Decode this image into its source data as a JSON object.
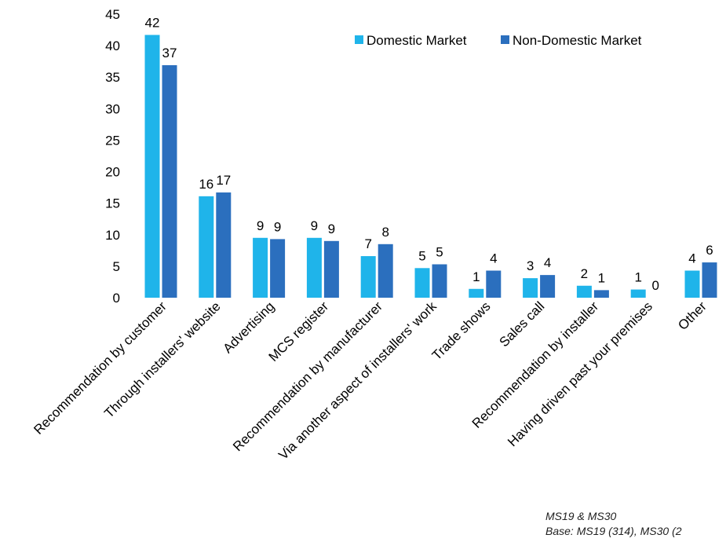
{
  "chart_data": {
    "type": "bar",
    "categories": [
      "Recommendation by customer",
      "Through installers' website",
      "Advertising",
      "MCS register",
      "Recommendation by manufacturer",
      "Via another aspect of installers' work",
      "Trade shows",
      "Sales call",
      "Recommendation by installer",
      "Having driven past your premises",
      "Other"
    ],
    "series": [
      {
        "name": "Domestic Market",
        "color": "#1fb4ea",
        "values": [
          41.7,
          16.1,
          9.5,
          9.5,
          6.6,
          4.7,
          1.4,
          3.1,
          1.9,
          1.3,
          4.3
        ],
        "labels": [
          "42",
          "16",
          "9",
          "9",
          "7",
          "5",
          "1",
          "3",
          "2",
          "1",
          "4"
        ]
      },
      {
        "name": "Non-Domestic Market",
        "color": "#2b6fbe",
        "values": [
          36.9,
          16.7,
          9.3,
          9.0,
          8.5,
          5.3,
          4.3,
          3.6,
          1.2,
          0,
          5.6
        ],
        "labels": [
          "37",
          "17",
          "9",
          "9",
          "8",
          "5",
          "4",
          "4",
          "1",
          "0",
          "6"
        ]
      }
    ],
    "ylim": [
      0,
      45
    ],
    "yticks": [
      "0",
      "5",
      "10",
      "15",
      "20",
      "25",
      "30",
      "35",
      "40",
      "45"
    ],
    "legend_position": "top-right",
    "grid": false
  },
  "notes": {
    "line1": "MS19 & MS30",
    "line2": "Base: MS19 (314), MS30 (2"
  }
}
